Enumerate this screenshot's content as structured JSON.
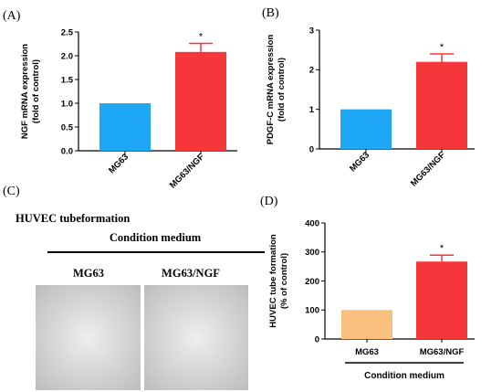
{
  "panels": {
    "a": {
      "letter": "(A)"
    },
    "b": {
      "letter": "(B)"
    },
    "c": {
      "letter": "(C)",
      "heading": "HUVEC tubeformation",
      "group_label": "Condition medium",
      "image_labels": [
        "MG63",
        "MG63/NGF"
      ]
    },
    "d": {
      "letter": "(D)"
    }
  },
  "chart_data": [
    {
      "type": "bar",
      "panel": "A",
      "categories": [
        "MG63",
        "MG63/NGF"
      ],
      "values": [
        1.0,
        2.08
      ],
      "errors": [
        0,
        0.18
      ],
      "significance": [
        "",
        "*"
      ],
      "colors": [
        "#1ea7f5",
        "#f5373c"
      ],
      "ylabel": "NGF mRNA expression\n(fold of control)",
      "xlabel": "",
      "ylim": [
        0,
        2.5
      ],
      "yticks": [
        0.0,
        0.5,
        1.0,
        1.5,
        2.0,
        2.5
      ],
      "ytick_labels": [
        "0.0",
        "0.5",
        "1.0",
        "1.5",
        "2.0",
        "2.5"
      ]
    },
    {
      "type": "bar",
      "panel": "B",
      "categories": [
        "MG63",
        "MG63/NGF"
      ],
      "values": [
        1.0,
        2.2
      ],
      "errors": [
        0,
        0.2
      ],
      "significance": [
        "",
        "*"
      ],
      "colors": [
        "#1ea7f5",
        "#f5373c"
      ],
      "ylabel": "PDGF-C mRNA expression\n(fold of control)",
      "xlabel": "",
      "ylim": [
        0,
        3
      ],
      "yticks": [
        0,
        1,
        2,
        3
      ],
      "ytick_labels": [
        "0",
        "1",
        "2",
        "3"
      ]
    },
    {
      "type": "bar",
      "panel": "D",
      "categories": [
        "MG63",
        "MG63/NGF"
      ],
      "values": [
        100,
        267
      ],
      "errors": [
        0,
        22
      ],
      "significance": [
        "",
        "*"
      ],
      "colors": [
        "#fcc07e",
        "#f5373c"
      ],
      "ylabel": "HUVEC tube formation\n(% of control)",
      "xlabel": "Condition medium",
      "ylim": [
        0,
        400
      ],
      "yticks": [
        0,
        100,
        200,
        300,
        400
      ],
      "ytick_labels": [
        "0",
        "100",
        "200",
        "300",
        "400"
      ]
    }
  ]
}
